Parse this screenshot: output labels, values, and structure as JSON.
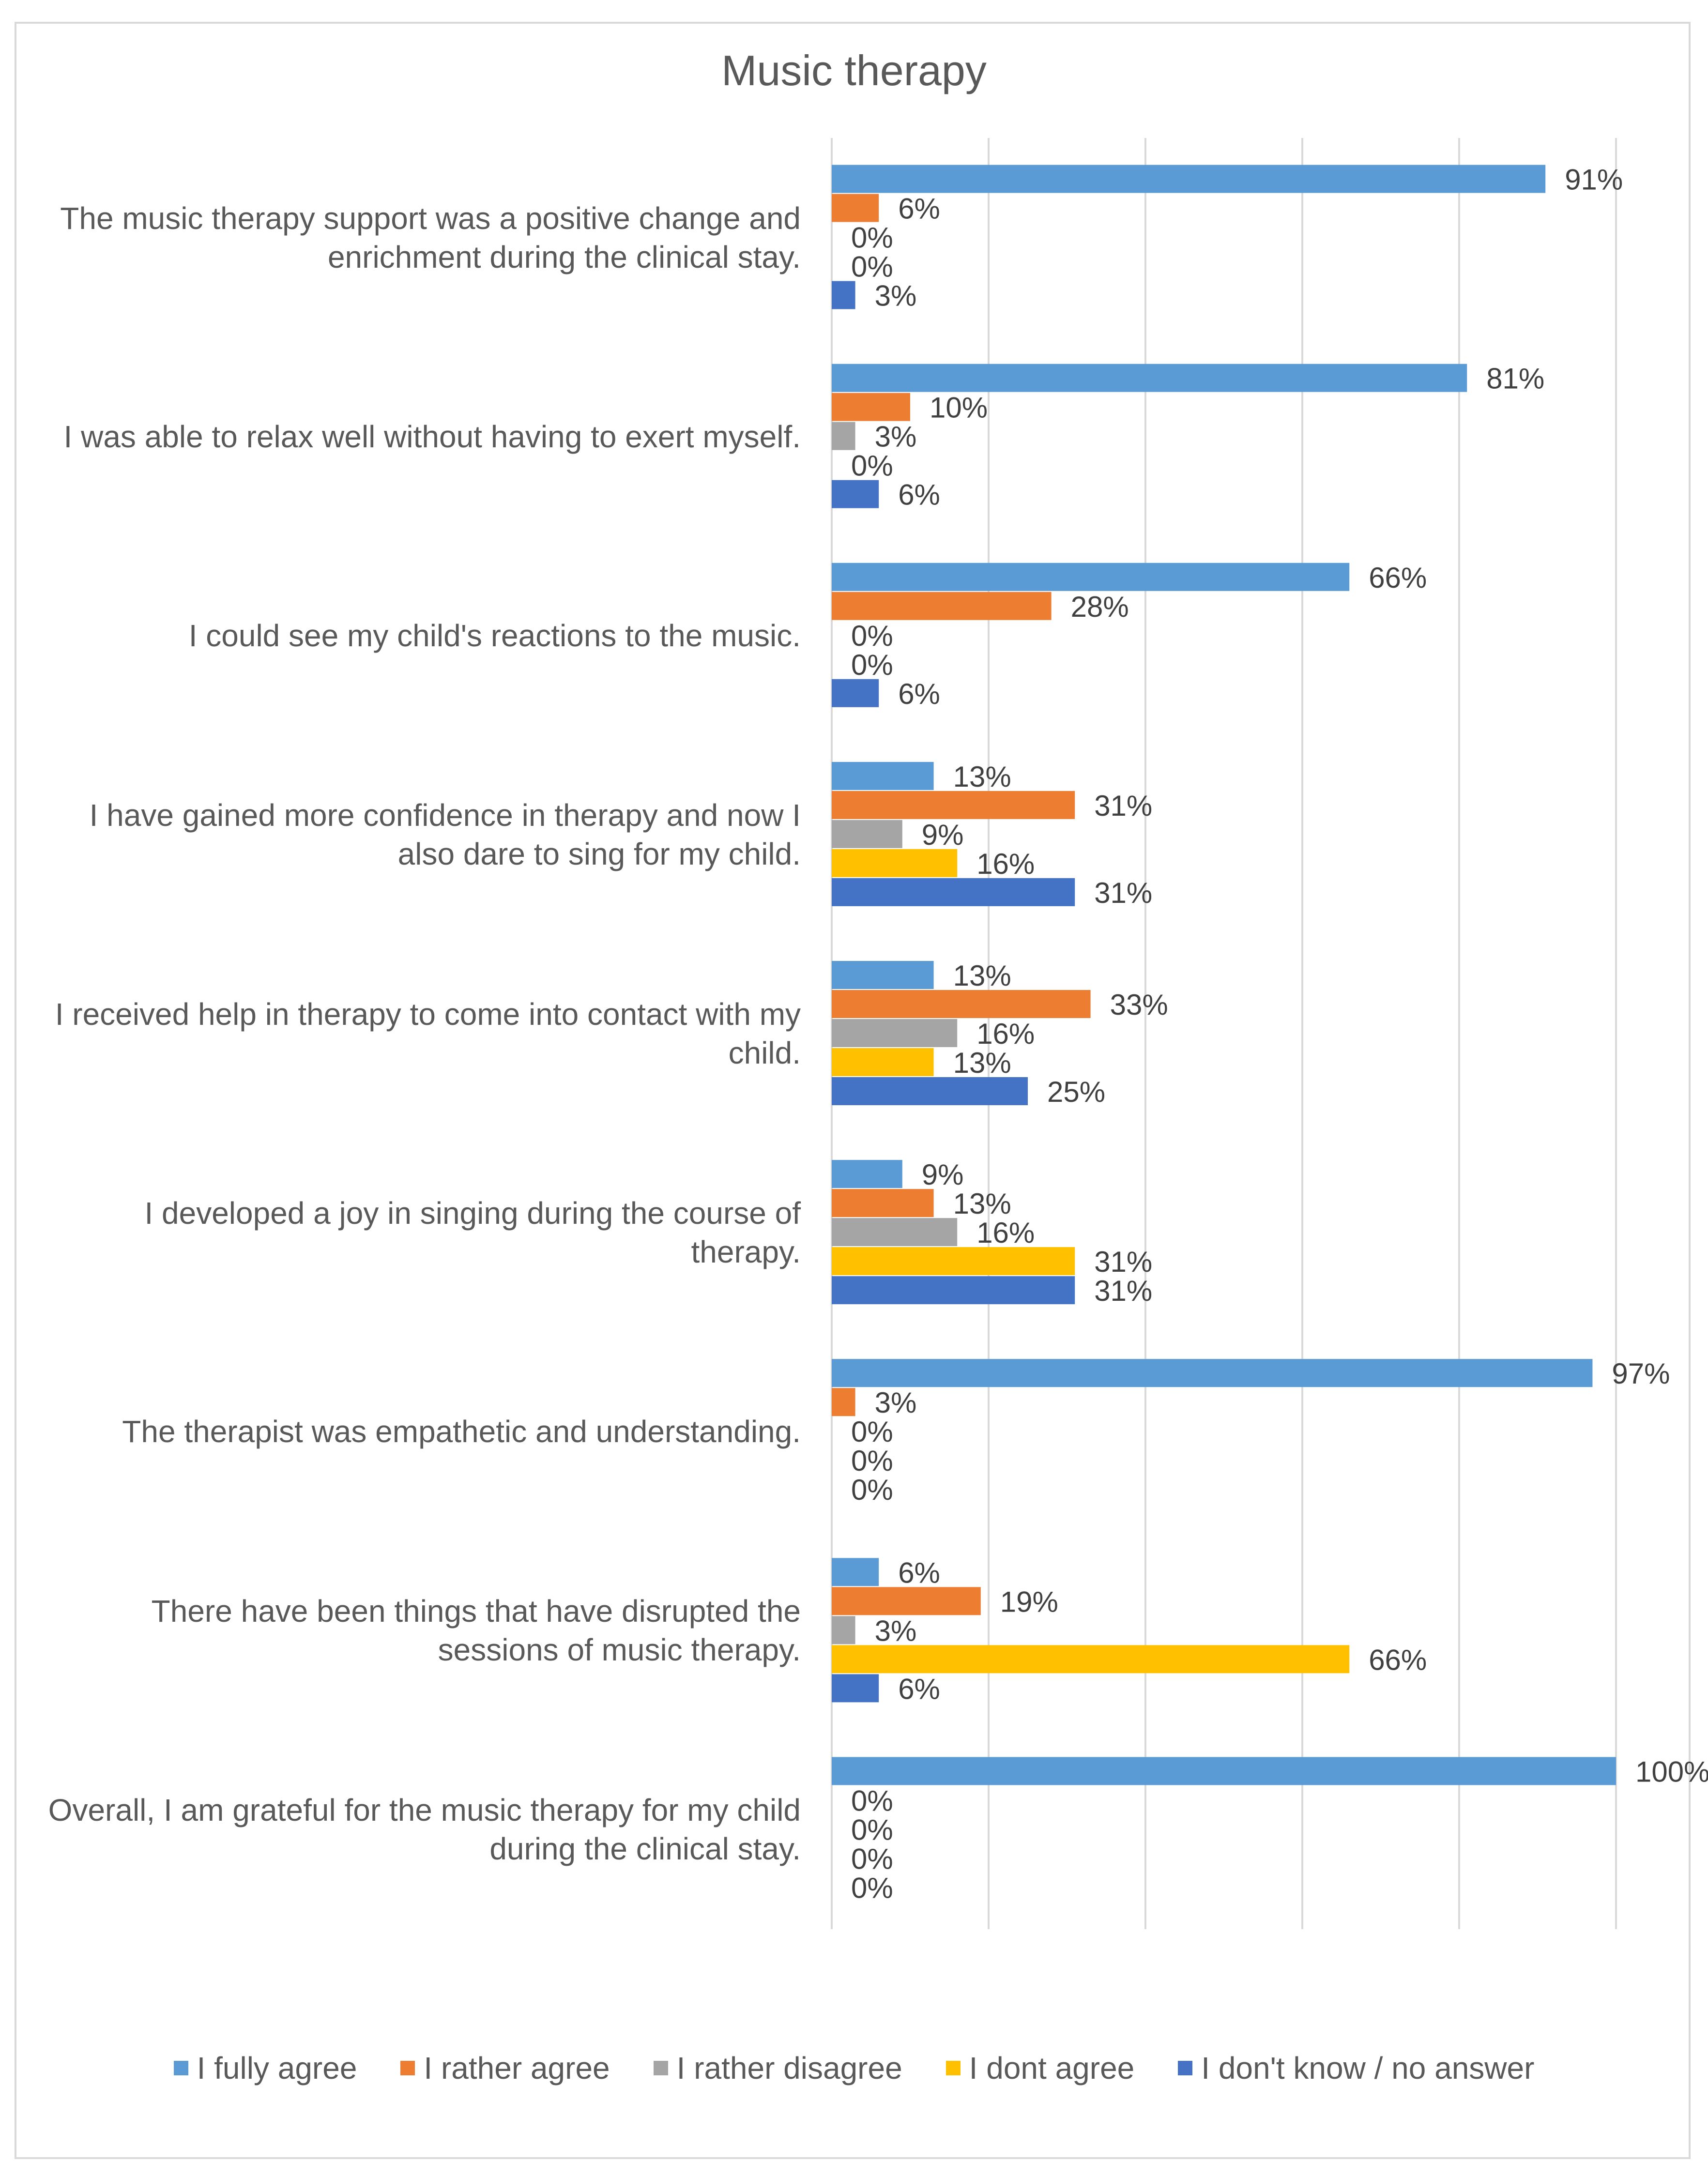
{
  "chart_data": {
    "type": "bar",
    "orientation": "horizontal",
    "title": "Music therapy",
    "categories": [
      "The music therapy support was a positive change and enrichment during the clinical stay.",
      "I was able to relax well without having to exert myself.",
      "I could see my child's reactions to the music.",
      "I have gained more confidence in therapy and now I also dare to sing for my child.",
      "I received help in therapy to come into contact with my child.",
      "I developed a joy in singing during the course of therapy.",
      "The therapist was empathetic and understanding.",
      "There have been things that have disrupted the sessions of music therapy.",
      "Overall, I am grateful for the music therapy for my child during the clinical stay."
    ],
    "series": [
      {
        "name": "I fully agree",
        "color": "#5b9bd5",
        "values": [
          91,
          81,
          66,
          13,
          13,
          9,
          97,
          6,
          100
        ]
      },
      {
        "name": "I rather agree",
        "color": "#ed7d31",
        "values": [
          6,
          10,
          28,
          31,
          33,
          13,
          3,
          19,
          0
        ]
      },
      {
        "name": "I rather disagree",
        "color": "#a5a5a5",
        "values": [
          0,
          3,
          0,
          9,
          16,
          16,
          0,
          3,
          0
        ]
      },
      {
        "name": "I dont agree",
        "color": "#ffc000",
        "values": [
          0,
          0,
          0,
          16,
          13,
          31,
          0,
          66,
          0
        ]
      },
      {
        "name": "I don't know / no answer",
        "color": "#4472c4",
        "values": [
          3,
          6,
          6,
          31,
          25,
          31,
          0,
          6,
          0
        ]
      }
    ],
    "value_suffix": "%",
    "xlim": [
      0,
      100
    ],
    "xgrid": [
      0,
      20,
      40,
      60,
      80,
      100
    ],
    "grid": true,
    "legend_position": "bottom",
    "xlabel": "",
    "ylabel": ""
  }
}
